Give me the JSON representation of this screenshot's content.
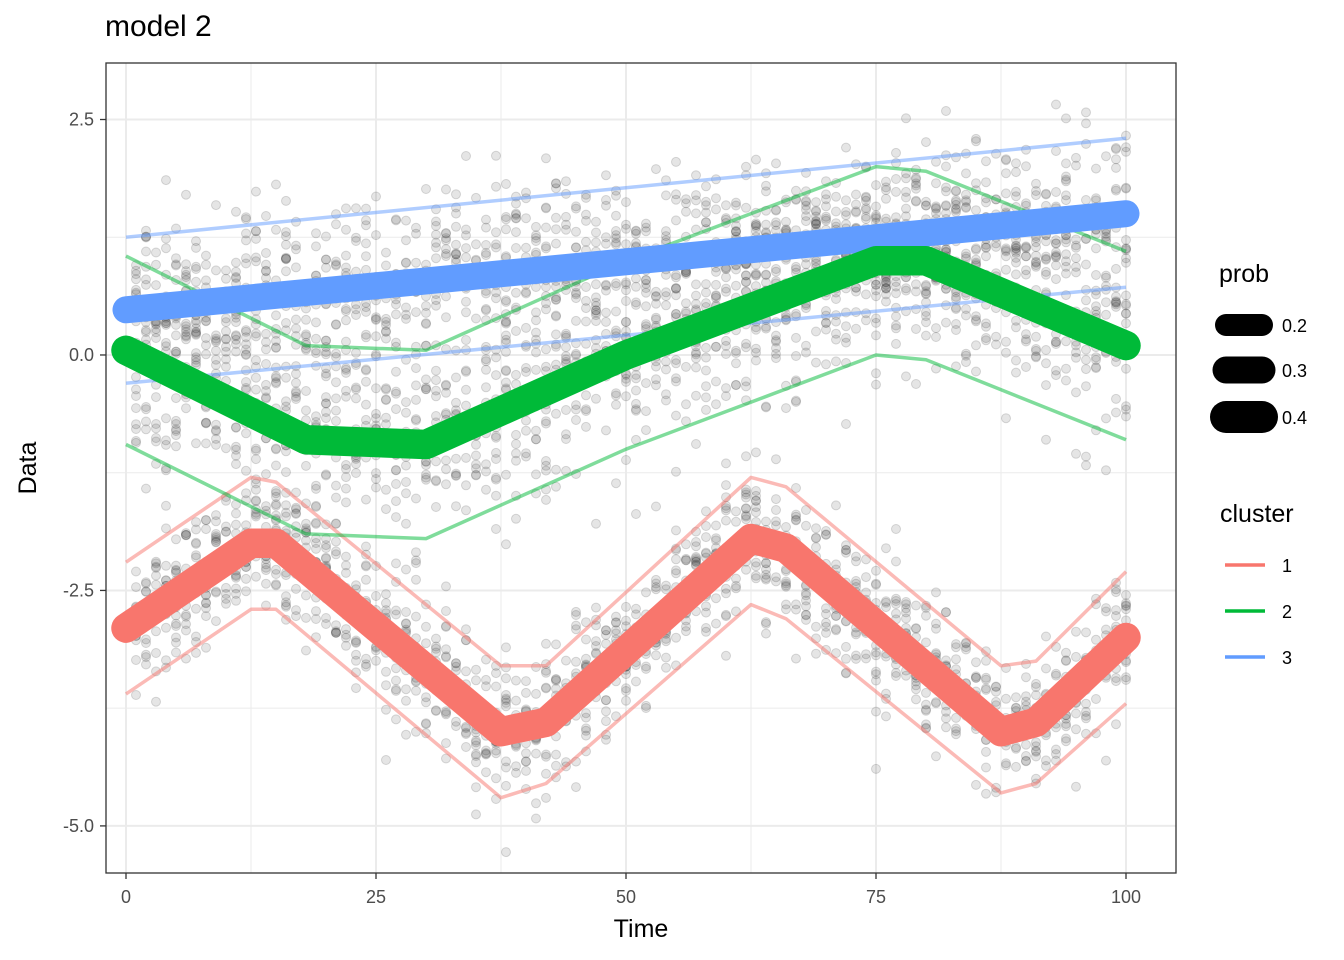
{
  "chart_data": {
    "type": "line",
    "title": "model 2",
    "xlabel": "Time",
    "ylabel": "Data",
    "xlim": [
      -2,
      105
    ],
    "ylim": [
      -5.5,
      3.1
    ],
    "x_ticks": [
      0,
      25,
      50,
      75,
      100
    ],
    "x_tick_labels": [
      "0",
      "25",
      "50",
      "75",
      "100"
    ],
    "y_ticks": [
      2.5,
      0.0,
      -2.5,
      -5.0
    ],
    "y_tick_labels": [
      "2.5",
      "0.0",
      "-2.5",
      "-5.0"
    ],
    "grid": true,
    "legend_position": "right",
    "legends": {
      "prob": {
        "title": "prob",
        "entries": [
          "0.2",
          "0.3",
          "0.4"
        ]
      },
      "cluster": {
        "title": "cluster",
        "entries": [
          "1",
          "2",
          "3"
        ]
      }
    },
    "colors": {
      "1": "#f8766d",
      "2": "#00ba38",
      "3": "#619cff",
      "points": "#000000"
    },
    "series": [
      {
        "name": "1",
        "x": [
          0,
          12.5,
          15,
          37.5,
          42,
          62.5,
          66,
          87.5,
          91,
          100
        ],
        "mean": [
          -2.9,
          -2.0,
          -2.0,
          -4.0,
          -3.9,
          -1.95,
          -2.05,
          -4.0,
          -3.9,
          -3.0
        ],
        "upper": [
          -2.2,
          -1.3,
          -1.35,
          -3.3,
          -3.3,
          -1.3,
          -1.4,
          -3.3,
          -3.25,
          -2.3
        ],
        "lower": [
          -3.6,
          -2.7,
          -2.7,
          -4.7,
          -4.55,
          -2.65,
          -2.8,
          -4.65,
          -4.55,
          -3.7
        ],
        "prob": 0.35
      },
      {
        "name": "2",
        "x": [
          0,
          18,
          30,
          50,
          75,
          80,
          100
        ],
        "mean": [
          0.05,
          -0.9,
          -0.95,
          0.0,
          1.0,
          1.0,
          0.1
        ],
        "upper": [
          1.05,
          0.1,
          0.05,
          1.0,
          2.0,
          1.95,
          1.1
        ],
        "lower": [
          -0.95,
          -1.9,
          -1.95,
          -1.0,
          0.0,
          -0.05,
          -0.9
        ],
        "prob": 0.35
      },
      {
        "name": "3",
        "x": [
          0,
          100
        ],
        "mean": [
          0.48,
          1.5
        ],
        "upper": [
          1.25,
          2.3
        ],
        "lower": [
          -0.3,
          0.72
        ],
        "prob": 0.3
      }
    ]
  }
}
